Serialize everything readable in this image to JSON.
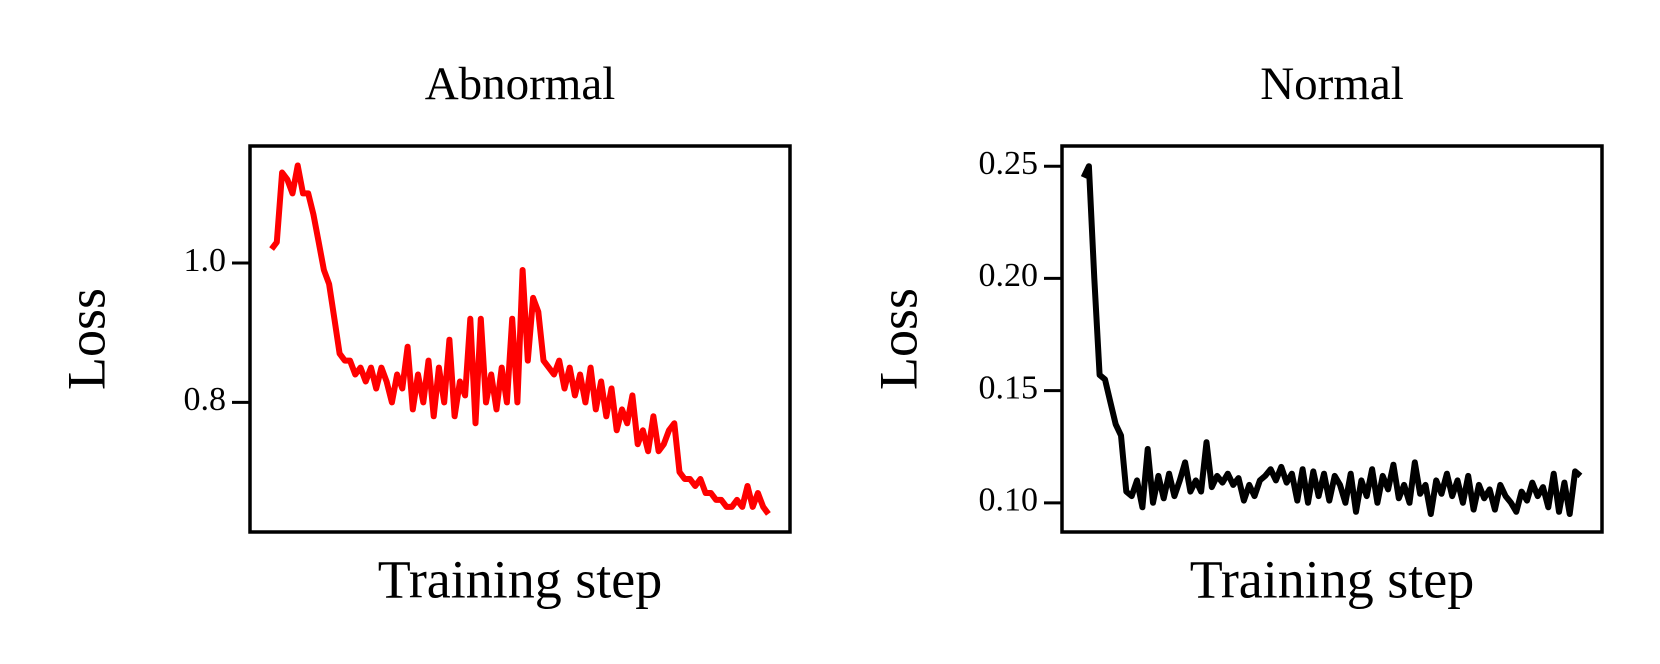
{
  "chart_data": [
    {
      "type": "line",
      "title": "Abnormal",
      "xlabel": "Training step",
      "ylabel": "Loss",
      "color": "#ff0000",
      "ylim": [
        0.614,
        1.168
      ],
      "yticks": [
        {
          "value": 1,
          "label": "1.0"
        },
        {
          "value": 0.8,
          "label": "0.8"
        }
      ],
      "values": [
        1.02,
        1.03,
        1.13,
        1.12,
        1.1,
        1.14,
        1.1,
        1.1,
        1.07,
        1.03,
        0.99,
        0.97,
        0.92,
        0.87,
        0.86,
        0.86,
        0.84,
        0.85,
        0.83,
        0.85,
        0.82,
        0.85,
        0.83,
        0.8,
        0.84,
        0.82,
        0.88,
        0.79,
        0.84,
        0.8,
        0.86,
        0.78,
        0.85,
        0.8,
        0.89,
        0.78,
        0.83,
        0.81,
        0.92,
        0.77,
        0.92,
        0.8,
        0.84,
        0.79,
        0.85,
        0.8,
        0.92,
        0.8,
        0.99,
        0.86,
        0.95,
        0.93,
        0.86,
        0.85,
        0.84,
        0.86,
        0.82,
        0.85,
        0.81,
        0.84,
        0.8,
        0.85,
        0.79,
        0.83,
        0.78,
        0.82,
        0.76,
        0.79,
        0.77,
        0.81,
        0.74,
        0.76,
        0.73,
        0.78,
        0.73,
        0.74,
        0.76,
        0.77,
        0.7,
        0.69,
        0.69,
        0.68,
        0.69,
        0.67,
        0.67,
        0.66,
        0.66,
        0.65,
        0.65,
        0.66,
        0.65,
        0.68,
        0.65,
        0.67,
        0.65,
        0.64
      ]
    },
    {
      "type": "line",
      "title": "Normal",
      "xlabel": "Training step",
      "ylabel": "Loss",
      "color": "#000000",
      "ylim": [
        0.087,
        0.259
      ],
      "yticks": [
        0.25,
        {
          "value": 0.2,
          "label": "0.20"
        },
        0.15,
        {
          "value": 0.1,
          "label": "0.10"
        }
      ],
      "values": [
        0.245,
        0.25,
        0.2,
        0.157,
        0.155,
        0.145,
        0.135,
        0.13,
        0.105,
        0.103,
        0.11,
        0.098,
        0.124,
        0.1,
        0.112,
        0.102,
        0.113,
        0.103,
        0.11,
        0.118,
        0.105,
        0.11,
        0.105,
        0.127,
        0.107,
        0.112,
        0.109,
        0.113,
        0.108,
        0.111,
        0.101,
        0.108,
        0.103,
        0.11,
        0.112,
        0.115,
        0.11,
        0.116,
        0.109,
        0.113,
        0.101,
        0.115,
        0.1,
        0.114,
        0.103,
        0.113,
        0.101,
        0.112,
        0.108,
        0.1,
        0.113,
        0.096,
        0.11,
        0.103,
        0.115,
        0.1,
        0.112,
        0.106,
        0.117,
        0.102,
        0.108,
        0.1,
        0.118,
        0.104,
        0.108,
        0.095,
        0.11,
        0.104,
        0.113,
        0.103,
        0.11,
        0.1,
        0.112,
        0.097,
        0.108,
        0.102,
        0.106,
        0.097,
        0.108,
        0.103,
        0.1,
        0.096,
        0.105,
        0.101,
        0.109,
        0.103,
        0.107,
        0.098,
        0.113,
        0.096,
        0.109,
        0.095,
        0.114,
        0.112
      ]
    }
  ]
}
